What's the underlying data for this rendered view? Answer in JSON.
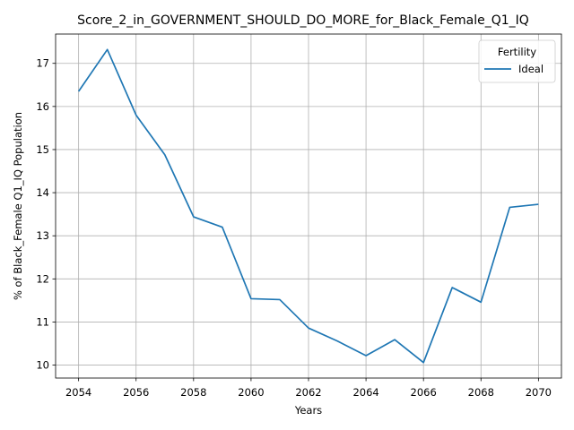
{
  "chart_data": {
    "type": "line",
    "title": "Score_2_in_GOVERNMENT_SHOULD_DO_MORE_for_Black_Female_Q1_IQ",
    "xlabel": "Years",
    "ylabel": "% of Black_Female Q1_IQ Population",
    "x": [
      2054,
      2055,
      2056,
      2057,
      2058,
      2059,
      2060,
      2061,
      2062,
      2063,
      2064,
      2065,
      2066,
      2067,
      2068,
      2069,
      2070
    ],
    "series": [
      {
        "name": "Ideal",
        "color": "#1f77b4",
        "values": [
          16.35,
          17.32,
          15.8,
          14.88,
          13.44,
          13.2,
          11.54,
          11.52,
          10.86,
          10.56,
          10.22,
          10.59,
          10.06,
          11.8,
          11.46,
          13.66,
          13.73
        ]
      }
    ],
    "xlim": [
      2053.2,
      2070.8
    ],
    "ylim": [
      9.7,
      17.68
    ],
    "xticks": [
      2054,
      2056,
      2058,
      2060,
      2062,
      2064,
      2066,
      2068,
      2070
    ],
    "yticks": [
      10,
      11,
      12,
      13,
      14,
      15,
      16,
      17
    ],
    "grid": true,
    "legend": {
      "title": "Fertility",
      "position": "top-right"
    }
  }
}
